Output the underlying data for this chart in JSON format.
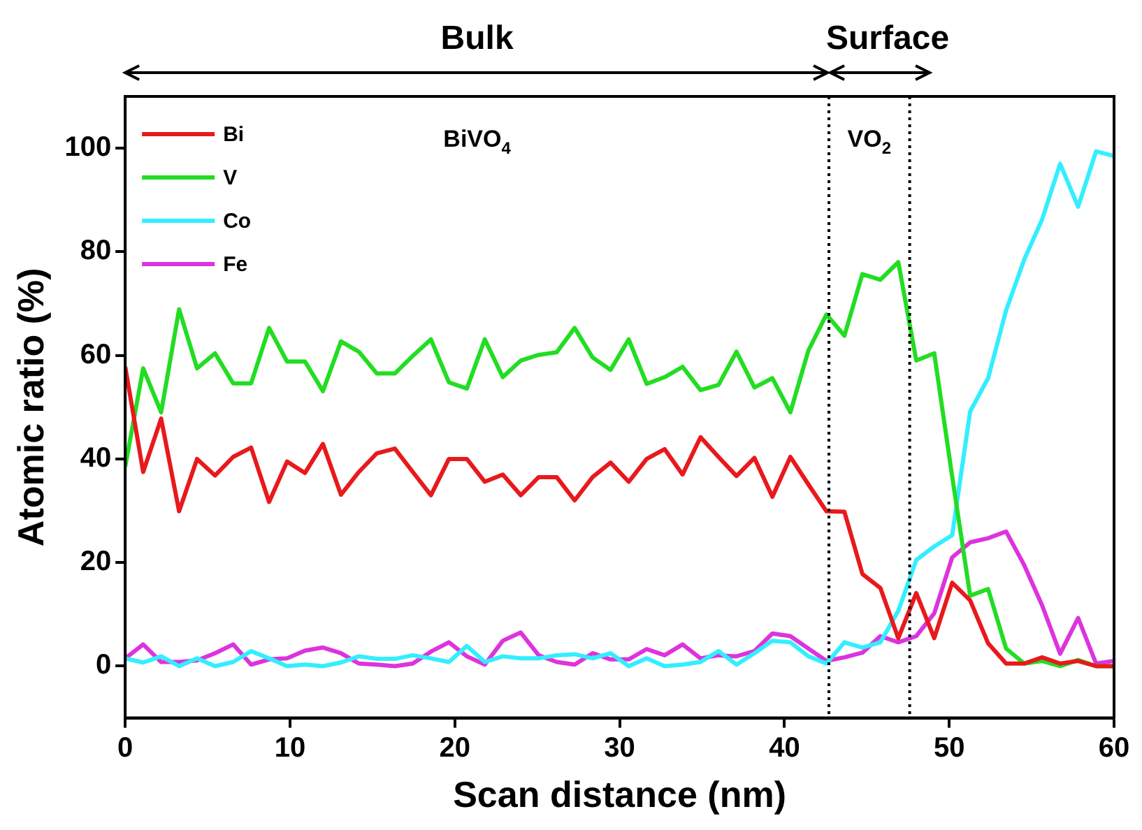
{
  "chart_data": {
    "type": "line",
    "xlabel": "Scan distance (nm)",
    "ylabel": "Atomic ratio (%)",
    "x": [
      0,
      1.09,
      2.18,
      3.27,
      4.36,
      5.45,
      6.55,
      7.64,
      8.73,
      9.82,
      10.91,
      12,
      13.09,
      14.18,
      15.27,
      16.36,
      17.45,
      18.55,
      19.64,
      20.73,
      21.82,
      22.91,
      24,
      25.09,
      26.18,
      27.27,
      28.36,
      29.45,
      30.55,
      31.64,
      32.73,
      33.82,
      34.91,
      36,
      37.09,
      38.18,
      39.27,
      40.36,
      41.45,
      42.55,
      43.64,
      44.73,
      45.82,
      46.91,
      48,
      49.09,
      50.18,
      51.27,
      52.36,
      53.45,
      54.55,
      55.64,
      56.73,
      57.82,
      58.91,
      60
    ],
    "series": [
      {
        "name": "Bi",
        "color": "#e8191c",
        "values": [
          57.8,
          37.5,
          47.8,
          29.9,
          40,
          36.8,
          40.4,
          42.2,
          31.7,
          39.5,
          37.3,
          42.9,
          33.1,
          37.5,
          41.1,
          42,
          37.5,
          33,
          40,
          40,
          35.6,
          37,
          33,
          36.5,
          36.5,
          32,
          36.5,
          39.3,
          35.6,
          40,
          41.9,
          37,
          44.2,
          40.4,
          36.7,
          40.2,
          32.7,
          40.4,
          35.1,
          29.9,
          29.8,
          17.8,
          15.1,
          5.4,
          14.1,
          5.4,
          16.1,
          12.7,
          4.4,
          0.5,
          0.5,
          1.7,
          0.5,
          1,
          0,
          0
        ]
      },
      {
        "name": "V",
        "color": "#22dd22",
        "values": [
          38.5,
          57.5,
          49,
          68.9,
          57.5,
          60.4,
          54.6,
          54.6,
          65.3,
          58.8,
          58.8,
          53.1,
          62.7,
          60.7,
          56.5,
          56.5,
          59.9,
          63.1,
          54.8,
          53.6,
          63.1,
          55.8,
          59,
          60.1,
          60.6,
          65.3,
          59.6,
          57.2,
          63.1,
          54.5,
          55.8,
          57.8,
          53.3,
          54.3,
          60.7,
          53.8,
          55.6,
          49,
          60.9,
          67.9,
          63.8,
          75.7,
          74.6,
          78,
          59,
          60.4,
          36.6,
          13.6,
          14.9,
          3.4,
          0.5,
          1,
          0,
          1.2,
          0,
          0
        ]
      },
      {
        "name": "Co",
        "color": "#33eeff",
        "values": [
          1.5,
          0.7,
          1.9,
          0,
          1.5,
          0,
          0.8,
          2.9,
          1.5,
          0,
          0.3,
          0,
          0.7,
          1.9,
          1.4,
          1.4,
          2.1,
          1.5,
          0.8,
          3.9,
          0.8,
          1.9,
          1.5,
          1.5,
          2.1,
          2.3,
          1.5,
          2.5,
          0,
          1.5,
          0,
          0.3,
          0.8,
          2.9,
          0.3,
          2.5,
          4.9,
          4.6,
          1.9,
          0.5,
          4.6,
          3.6,
          4.6,
          10.7,
          20.5,
          23.1,
          25.3,
          49.2,
          55.6,
          68.7,
          78.5,
          86.3,
          97,
          88.7,
          99.4,
          98.5
        ]
      },
      {
        "name": "Fe",
        "color": "#dd33dd",
        "values": [
          1.5,
          4.2,
          0.8,
          0.8,
          1.1,
          2.5,
          4.2,
          0.3,
          1.3,
          1.5,
          3,
          3.6,
          2.5,
          0.5,
          0.3,
          0,
          0.5,
          2.8,
          4.6,
          1.9,
          0.3,
          4.9,
          6.5,
          2.1,
          0.8,
          0.3,
          2.5,
          1.3,
          1.3,
          3.3,
          2.1,
          4.2,
          1.5,
          2.1,
          1.9,
          2.9,
          6.3,
          5.8,
          3.4,
          1,
          1.7,
          2.6,
          5.8,
          4.6,
          5.8,
          10.2,
          21,
          23.9,
          24.7,
          26,
          19.5,
          11.7,
          2.4,
          9.3,
          0.5,
          1
        ]
      }
    ],
    "xlim": [
      0,
      60
    ],
    "xticks": [
      0,
      10,
      20,
      30,
      40,
      50,
      60
    ],
    "ylim": [
      -10,
      110
    ],
    "yticks": [
      0,
      20,
      40,
      60,
      80,
      100
    ],
    "ref_lines": [
      {
        "axis": "x",
        "value": 42.7,
        "color": "#000000",
        "line_style": "dotted"
      },
      {
        "axis": "x",
        "value": 47.6,
        "color": "#000000",
        "line_style": "dotted"
      }
    ],
    "annotations": [
      "Bulk",
      "Surface",
      "BiVO$_{4}$",
      "VO$_{2}$"
    ],
    "grid": false,
    "legend": "top left",
    "marker": "none",
    "line_style": "solid"
  }
}
